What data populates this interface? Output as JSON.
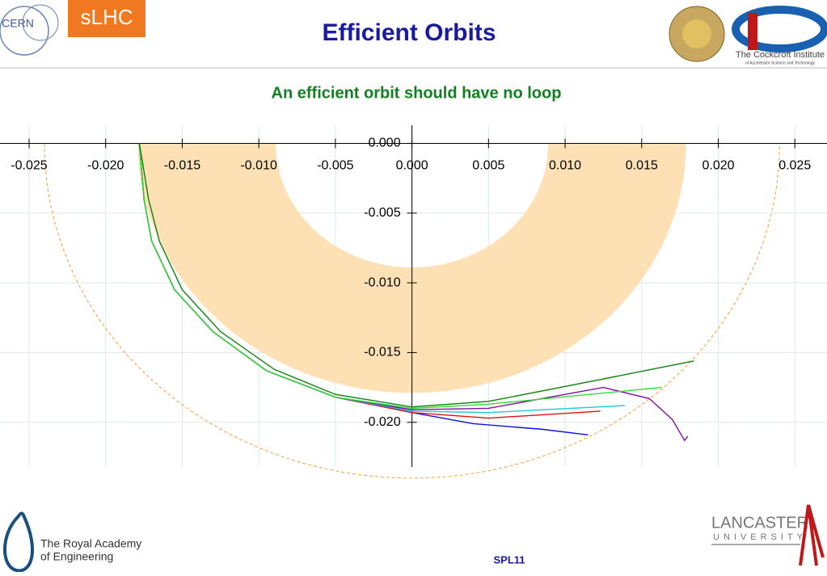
{
  "header": {
    "title": "Efficient Orbits",
    "badge": "sLHC",
    "cern": "CERN",
    "cockcroft": "The Cockcroft Institute",
    "cockcroft_sub": "of Accelerator Science and Technology"
  },
  "footer": {
    "academy_1": "The Royal Academy",
    "academy_2": "of Engineering",
    "lancaster": "LANCASTER",
    "university": "UNIVERSITY",
    "code": "SPL11"
  },
  "chart_data": {
    "type": "line",
    "title": "An efficient orbit should have no loop",
    "xlim": [
      -0.0269,
      0.0271
    ],
    "ylim": [
      -0.0232,
      0.0013
    ],
    "xticks": [
      {
        "value": -0.025,
        "label": "-0.025"
      },
      {
        "value": -0.02,
        "label": "-0.020"
      },
      {
        "value": -0.015,
        "label": "-0.015"
      },
      {
        "value": -0.01,
        "label": "-0.010"
      },
      {
        "value": -0.005,
        "label": "-0.005"
      },
      {
        "value": 0,
        "label": "0.000"
      },
      {
        "value": 0.005,
        "label": "0.005"
      },
      {
        "value": 0.01,
        "label": "0.010"
      },
      {
        "value": 0.015,
        "label": "0.015"
      },
      {
        "value": 0.02,
        "label": "0.020"
      },
      {
        "value": 0.025,
        "label": "0.025"
      }
    ],
    "yticks": [
      {
        "value": 0,
        "label": "0.000"
      },
      {
        "value": -0.005,
        "label": "-0.005"
      },
      {
        "value": -0.01,
        "label": "-0.010"
      },
      {
        "value": -0.015,
        "label": "-0.015"
      },
      {
        "value": -0.02,
        "label": "-0.020"
      }
    ],
    "grid": true,
    "band": {
      "inner": 0.0089,
      "outer": 0.0179,
      "color": "#fde0b4"
    },
    "circle": {
      "radius": 0.024,
      "color": "#f0a040"
    },
    "series": [
      {
        "color": "#1010e0",
        "x": [
          -0.0178,
          -0.0175,
          -0.017,
          -0.0155,
          -0.013,
          -0.0095,
          -0.005,
          0,
          0.004,
          0.0085,
          0.0115
        ],
        "values": [
          0,
          -0.004,
          -0.007,
          -0.0105,
          -0.0135,
          -0.0163,
          -0.0182,
          -0.0193,
          -0.0201,
          -0.0205,
          -0.0209
        ]
      },
      {
        "color": "#e01010",
        "x": [
          -0.0178,
          -0.0175,
          -0.017,
          -0.0155,
          -0.013,
          -0.0095,
          -0.005,
          0,
          0.005,
          0.0123
        ],
        "values": [
          0,
          -0.004,
          -0.007,
          -0.0105,
          -0.0135,
          -0.0163,
          -0.0182,
          -0.0193,
          -0.0197,
          -0.0192
        ]
      },
      {
        "color": "#20c8d8",
        "x": [
          -0.0178,
          -0.0175,
          -0.017,
          -0.0155,
          -0.013,
          -0.0095,
          -0.005,
          0,
          0.005,
          0.0139
        ],
        "values": [
          0,
          -0.004,
          -0.007,
          -0.0105,
          -0.0135,
          -0.0163,
          -0.0182,
          -0.0192,
          -0.0193,
          -0.0188
        ]
      },
      {
        "color": "#8010a0",
        "x": [
          -0.0178,
          -0.0175,
          -0.017,
          -0.0155,
          -0.013,
          -0.0095,
          -0.005,
          0,
          0.005,
          0.0125,
          0.0155,
          0.017,
          0.0178,
          0.018
        ],
        "values": [
          0,
          -0.004,
          -0.007,
          -0.0105,
          -0.0135,
          -0.0163,
          -0.0182,
          -0.0191,
          -0.019,
          -0.0175,
          -0.0183,
          -0.0198,
          -0.0213,
          -0.021
        ]
      },
      {
        "color": "#30e030",
        "x": [
          -0.0178,
          -0.0175,
          -0.017,
          -0.0155,
          -0.013,
          -0.0095,
          -0.005,
          0,
          0.005,
          0.0163
        ],
        "values": [
          0,
          -0.004,
          -0.007,
          -0.0105,
          -0.0135,
          -0.0163,
          -0.0182,
          -0.019,
          -0.0187,
          -0.0175
        ]
      },
      {
        "color": "#108010",
        "x": [
          -0.0178,
          -0.0172,
          -0.0165,
          -0.015,
          -0.0125,
          -0.009,
          -0.005,
          0,
          0.005,
          0.012,
          0.0184
        ],
        "values": [
          0,
          -0.004,
          -0.007,
          -0.0105,
          -0.0135,
          -0.0162,
          -0.018,
          -0.0189,
          -0.0185,
          -0.017,
          -0.0156
        ]
      }
    ]
  }
}
